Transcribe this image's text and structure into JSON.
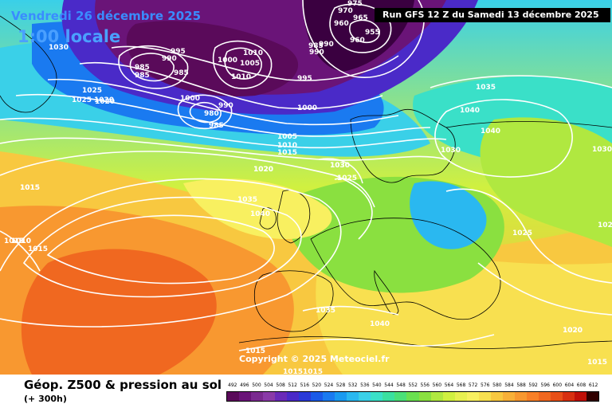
{
  "header": {
    "date": "Vendredi 26 décembre 2025",
    "time": "1:00 locale",
    "run": "Run GFS 12 Z du Samedi 13 décembre 2025"
  },
  "map": {
    "copyright": "Copyright © 2025 Meteociel.fr",
    "pressure_labels": [
      {
        "text": "975"
      },
      {
        "text": "970"
      },
      {
        "text": "965"
      },
      {
        "text": "960"
      },
      {
        "text": "955"
      },
      {
        "text": "960"
      },
      {
        "text": "985"
      },
      {
        "text": "990"
      },
      {
        "text": "995"
      },
      {
        "text": "985"
      },
      {
        "text": "985"
      },
      {
        "text": "990"
      },
      {
        "text": "1000"
      },
      {
        "text": "1010"
      },
      {
        "text": "1005"
      },
      {
        "text": "1010"
      },
      {
        "text": "990"
      },
      {
        "text": "985"
      },
      {
        "text": "1000"
      },
      {
        "text": "980"
      },
      {
        "text": "985"
      },
      {
        "text": "990"
      },
      {
        "text": "995"
      },
      {
        "text": "1000"
      },
      {
        "text": "1005"
      },
      {
        "text": "1010"
      },
      {
        "text": "1015"
      },
      {
        "text": "1020"
      },
      {
        "text": "1025"
      },
      {
        "text": "1030"
      },
      {
        "text": "1035"
      },
      {
        "text": "1040"
      },
      {
        "text": "1040"
      },
      {
        "text": "1040"
      },
      {
        "text": "1035"
      },
      {
        "text": "1030"
      },
      {
        "text": "1025"
      },
      {
        "text": "1020"
      },
      {
        "text": "1015"
      },
      {
        "text": "1015"
      },
      {
        "text": "1010"
      },
      {
        "text": "1015"
      },
      {
        "text": "1030"
      },
      {
        "text": "1035"
      },
      {
        "text": "1040"
      },
      {
        "text": "1025"
      },
      {
        "text": "1020"
      },
      {
        "text": "1015"
      },
      {
        "text": "1020"
      },
      {
        "text": "1015"
      },
      {
        "text": "1015"
      },
      {
        "text": "1015"
      },
      {
        "text": "1025"
      },
      {
        "text": "1020"
      },
      {
        "text": "1015"
      },
      {
        "text": "1030"
      },
      {
        "text": "1025"
      },
      {
        "text": "1020"
      },
      {
        "text": "1030"
      },
      {
        "text": "1010"
      }
    ]
  },
  "footer": {
    "title": "Géop. Z500 & pression au sol",
    "subtitle": "(+ 300h)"
  },
  "scale": {
    "labels": [
      "492",
      "496",
      "500",
      "504",
      "508",
      "512",
      "516",
      "520",
      "524",
      "528",
      "532",
      "536",
      "540",
      "544",
      "548",
      "552",
      "556",
      "560",
      "564",
      "568",
      "572",
      "576",
      "580",
      "584",
      "588",
      "592",
      "596",
      "600",
      "604",
      "608",
      "612"
    ],
    "colors": [
      "#5a0a5a",
      "#6a1478",
      "#7a2a90",
      "#8a3aa8",
      "#6a2ab8",
      "#4a2ac8",
      "#2a3ad8",
      "#1a5ae8",
      "#1a7af0",
      "#1a9af0",
      "#2ab8f0",
      "#3ad0e8",
      "#3ae0c8",
      "#3ae0a0",
      "#4ae078",
      "#6ae050",
      "#8ae040",
      "#b0e840",
      "#d0f040",
      "#e8f050",
      "#f8f060",
      "#f8e050",
      "#f8c840",
      "#f8b038",
      "#f89830",
      "#f88028",
      "#f06820",
      "#e85018",
      "#d83010",
      "#c01008",
      "#300000"
    ]
  }
}
